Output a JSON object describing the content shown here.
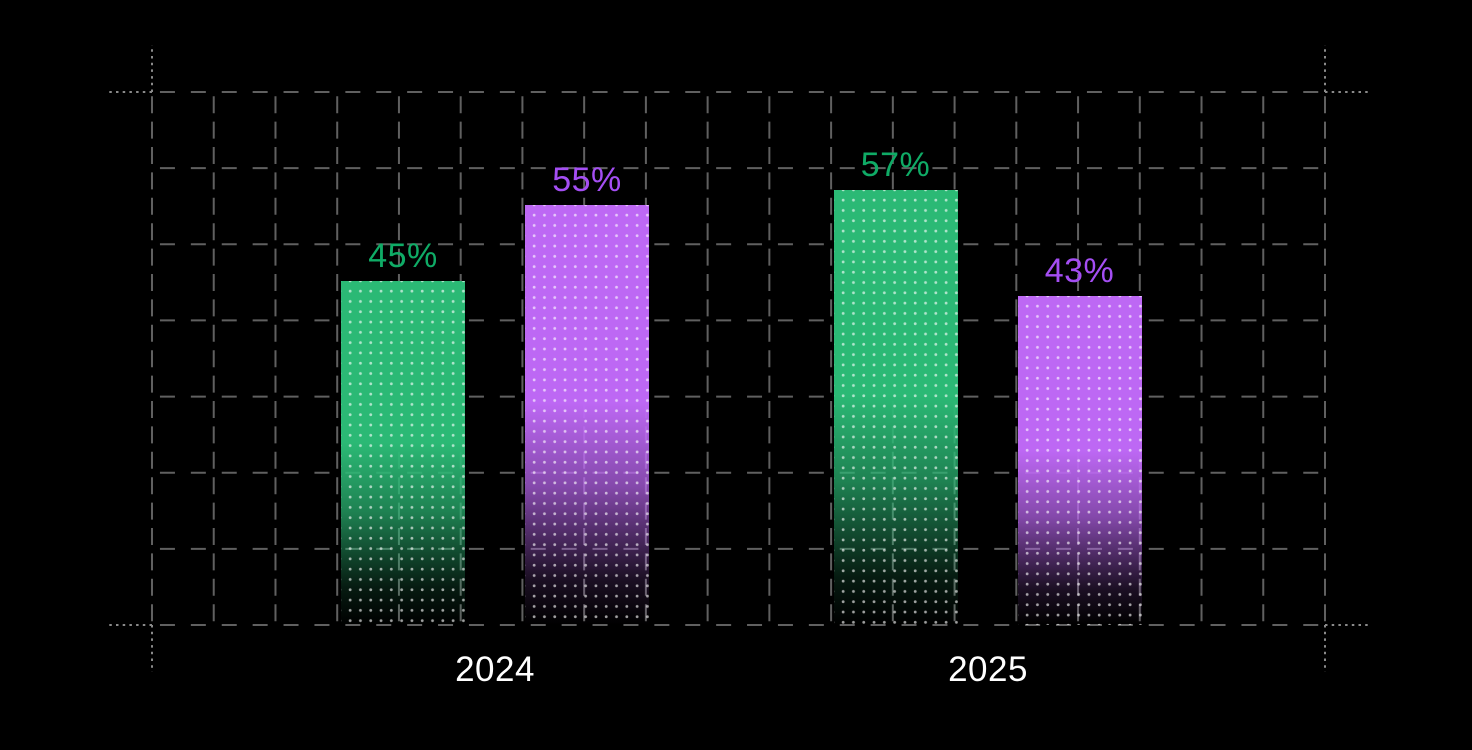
{
  "chart_data": {
    "type": "bar",
    "title": "",
    "categories": [
      "2024",
      "2025"
    ],
    "series": [
      {
        "name": "green-series",
        "values": [
          45,
          57
        ],
        "labels": [
          "45%",
          "57%"
        ],
        "bar_color": "#2bb975",
        "label_color": "#0fab66"
      },
      {
        "name": "purple-series",
        "values": [
          55,
          43
        ],
        "labels": [
          "55%",
          "43%"
        ],
        "bar_color": "#bd68f4",
        "label_color": "#a44ef3"
      }
    ],
    "ylim": [
      0,
      100
    ],
    "unit": "%",
    "grid": "dashed",
    "legend": "none",
    "background_color": "#000000",
    "grid_color": "#606060",
    "axis_label_color": "#ffffff"
  }
}
